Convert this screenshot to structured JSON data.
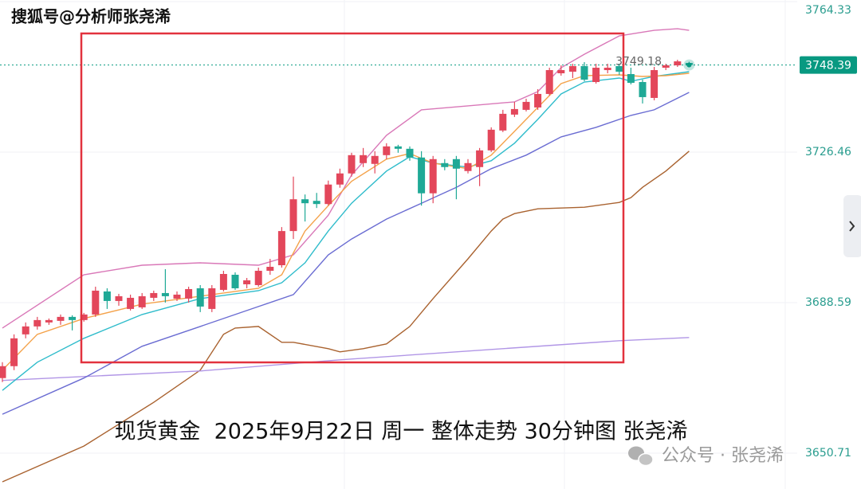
{
  "watermark": "搜狐号@分析师张尧浠",
  "footer_watermark": "公众号 · 张尧浠",
  "chart_data": {
    "type": "candlestick",
    "title": "现货黄金  2025年9月22日 周一 整体走势 30分钟图 张尧浠",
    "up_color": "#e3475b",
    "down_color": "#1fa996",
    "open": [
      3669.6,
      3672.6,
      3680.6,
      3682.6,
      3683.6,
      3684.0,
      3685.0,
      3684.2,
      3685.6,
      3691.4,
      3689.0,
      3687.0,
      3687.4,
      3689.8,
      3691.0,
      3689.6,
      3689.6,
      3692.2,
      3687.0,
      3691.8,
      3695.6,
      3693.2,
      3693.0,
      3696.6,
      3698.0,
      3706.6,
      3714.6,
      3714.2,
      3713.4,
      3718.3,
      3721.1,
      3723.7,
      3723.5,
      3725.7,
      3727.9,
      3727.3,
      3725.1,
      3716.1,
      3723.7,
      3724.7,
      3721.7,
      3722.7,
      3726.9,
      3731.9,
      3735.9,
      3737.1,
      3737.7,
      3741.1,
      3746.3,
      3746.7,
      3748.1,
      3744.1,
      3747.1,
      3748.1,
      3746.1,
      3744.1,
      3740.1,
      3747.7,
      3748.3,
      3748.9
    ],
    "high": [
      3673.6,
      3680.6,
      3683.6,
      3685.0,
      3684.6,
      3685.6,
      3685.4,
      3686.0,
      3692.6,
      3692.2,
      3690.8,
      3690.6,
      3691.0,
      3691.6,
      3697.0,
      3691.4,
      3692.6,
      3693.0,
      3693.0,
      3696.6,
      3696.2,
      3694.8,
      3697.4,
      3699.6,
      3707.6,
      3720.3,
      3715.8,
      3716.2,
      3719.3,
      3722.3,
      3726.3,
      3727.5,
      3726.7,
      3728.7,
      3728.3,
      3727.9,
      3726.7,
      3725.5,
      3724.7,
      3725.5,
      3724.7,
      3727.5,
      3732.7,
      3737.1,
      3739.1,
      3739.9,
      3742.3,
      3747.7,
      3748.3,
      3748.7,
      3749.1,
      3748.7,
      3748.7,
      3748.7,
      3747.7,
      3744.7,
      3747.9,
      3748.7,
      3749.7,
      3749.2
    ],
    "low": [
      3668.6,
      3671.6,
      3679.6,
      3681.8,
      3683.0,
      3683.0,
      3681.6,
      3683.8,
      3685.0,
      3687.0,
      3687.8,
      3686.6,
      3687.0,
      3689.0,
      3688.6,
      3689.0,
      3688.6,
      3686.2,
      3686.2,
      3691.4,
      3691.8,
      3692.2,
      3692.6,
      3695.6,
      3697.4,
      3704.6,
      3709.0,
      3712.4,
      3713.0,
      3717.5,
      3720.3,
      3722.7,
      3721.1,
      3724.7,
      3726.3,
      3724.3,
      3713.0,
      3713.6,
      3721.9,
      3714.6,
      3721.1,
      3717.9,
      3726.5,
      3731.5,
      3735.3,
      3736.7,
      3737.1,
      3740.7,
      3745.7,
      3745.1,
      3744.3,
      3743.7,
      3746.3,
      3745.9,
      3743.5,
      3738.7,
      3739.5,
      3747.1,
      3747.9,
      3748.1
    ],
    "close": [
      3672.6,
      3679.6,
      3682.6,
      3684.2,
      3684.2,
      3685.0,
      3684.2,
      3685.6,
      3691.6,
      3689.0,
      3690.2,
      3689.8,
      3690.2,
      3691.0,
      3690.2,
      3690.6,
      3692.0,
      3687.6,
      3692.2,
      3695.8,
      3692.2,
      3694.2,
      3696.6,
      3697.6,
      3706.6,
      3714.6,
      3713.6,
      3713.4,
      3718.3,
      3721.1,
      3725.7,
      3725.7,
      3725.5,
      3727.9,
      3727.3,
      3725.1,
      3716.1,
      3724.7,
      3722.7,
      3722.3,
      3723.7,
      3726.9,
      3732.1,
      3736.1,
      3737.3,
      3739.1,
      3741.1,
      3747.1,
      3747.1,
      3748.1,
      3744.7,
      3747.7,
      3747.7,
      3746.7,
      3743.9,
      3740.3,
      3747.1,
      3748.3,
      3749.3,
      3748.39
    ],
    "lines": [
      {
        "color": "#d978b8",
        "x": [
          0,
          7,
          12,
          17,
          22,
          25,
          28,
          30,
          33,
          36,
          40,
          44,
          46,
          48,
          50,
          53,
          56,
          58,
          59
        ],
        "values": [
          3682.2,
          3695.6,
          3698.0,
          3698.6,
          3698.0,
          3700.6,
          3710.6,
          3720.7,
          3730.7,
          3737.1,
          3738.1,
          3739.1,
          3741.7,
          3747.7,
          3751.1,
          3755.7,
          3757.1,
          3757.5,
          3757.1
        ]
      },
      {
        "color": "#a9622f",
        "x": [
          0,
          7,
          13,
          17,
          19,
          20,
          22,
          24,
          25,
          28,
          29,
          31,
          33,
          35,
          37,
          40,
          42,
          43,
          44,
          46,
          50,
          53,
          54,
          55,
          57,
          59
        ],
        "values": [
          3643.5,
          3652.5,
          3663.5,
          3671.6,
          3680.6,
          3682.2,
          3682.6,
          3678.6,
          3678.6,
          3677.0,
          3676.2,
          3677.0,
          3678.2,
          3682.6,
          3689.6,
          3699.6,
          3706.6,
          3709.6,
          3711.0,
          3712.2,
          3712.6,
          3713.8,
          3715.0,
          3717.6,
          3721.7,
          3726.7
        ]
      },
      {
        "color": "#b196e6",
        "x": [
          0,
          17,
          29,
          41,
          53,
          59
        ],
        "values": [
          3669.0,
          3671.4,
          3674.2,
          3676.6,
          3679.0,
          3679.8
        ]
      },
      {
        "color": "#6a6cd2",
        "x": [
          0,
          7,
          12,
          17,
          22,
          25,
          28,
          30,
          33,
          36,
          39,
          42,
          45,
          48,
          51,
          54,
          56,
          59
        ],
        "values": [
          3660.5,
          3669.6,
          3677.6,
          3682.6,
          3687.6,
          3690.6,
          3700.6,
          3704.6,
          3709.6,
          3713.6,
          3717.6,
          3722.3,
          3725.7,
          3730.3,
          3732.7,
          3735.7,
          3737.1,
          3741.5
        ]
      },
      {
        "color": "#2fbccb",
        "x": [
          0,
          3,
          7,
          12,
          17,
          22,
          24,
          26,
          28,
          30,
          33,
          35,
          37,
          40,
          42,
          44,
          46,
          48,
          50,
          53,
          54,
          56,
          59
        ],
        "values": [
          3666.5,
          3673.6,
          3679.6,
          3685.6,
          3689.6,
          3691.6,
          3693.6,
          3698.6,
          3706.6,
          3713.6,
          3721.7,
          3725.3,
          3723.7,
          3722.7,
          3724.3,
          3728.7,
          3734.7,
          3741.1,
          3744.1,
          3745.1,
          3744.3,
          3745.5,
          3746.7
        ]
      },
      {
        "color": "#f4a24a",
        "x": [
          0,
          3,
          7,
          12,
          17,
          22,
          24,
          26,
          28,
          30,
          33,
          35,
          37,
          40,
          42,
          44,
          46,
          48,
          50,
          53,
          55,
          57,
          59
        ],
        "values": [
          3671.6,
          3680.6,
          3684.6,
          3688.2,
          3690.2,
          3692.2,
          3695.6,
          3706.6,
          3713.0,
          3719.1,
          3724.7,
          3726.1,
          3723.7,
          3722.3,
          3725.7,
          3731.7,
          3737.7,
          3743.7,
          3745.7,
          3745.9,
          3745.5,
          3745.7,
          3746.3
        ]
      }
    ],
    "ylim": [
      3641.69,
      3764.74
    ],
    "yticks": [
      3764.33,
      3726.46,
      3688.59,
      3650.71
    ],
    "ytick_color": "#2a9d8f",
    "grid": true,
    "price_label": 3748.39,
    "price_label_color": "#089981",
    "high_label": 3749.18
  }
}
